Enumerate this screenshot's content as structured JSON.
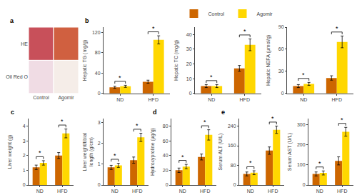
{
  "chart_data": [
    {
      "type": "image",
      "title": "a",
      "categories": [
        "Control",
        "Agomir"
      ],
      "series": [
        {
          "name": "HE",
          "colors": [
            "#c8505a",
            "#d06040"
          ]
        },
        {
          "name": "Oil Red O",
          "colors": [
            "#f0dce4",
            "#f5ede8"
          ]
        }
      ]
    },
    {
      "type": "bar",
      "title": "b",
      "categories": [
        "ND",
        "HFD"
      ],
      "ylabel": "Hepatic TG (mg/g)",
      "ylim": [
        0,
        130
      ],
      "yticks": [
        0,
        40,
        80,
        120
      ],
      "grid": false,
      "series": [
        {
          "name": "Control",
          "color": "#CD6600",
          "values": [
            12,
            23
          ],
          "errors": [
            2,
            3
          ]
        },
        {
          "name": "Agomir",
          "color": "#FFD700",
          "values": [
            14,
            105
          ],
          "errors": [
            2,
            8
          ]
        }
      ],
      "annotations": [
        {
          "x": "ND",
          "text": "*"
        },
        {
          "x": "HFD",
          "text": "*"
        }
      ]
    },
    {
      "type": "bar",
      "categories": [
        "ND",
        "HFD"
      ],
      "ylabel": "Hepatic TC (mg/g)",
      "ylim": [
        0,
        45
      ],
      "yticks": [
        0,
        10,
        20,
        30,
        40
      ],
      "grid": false,
      "legend": "top",
      "series": [
        {
          "name": "Control",
          "color": "#CD6600",
          "values": [
            5,
            17
          ],
          "errors": [
            1,
            2
          ]
        },
        {
          "name": "Agomir",
          "color": "#FFD700",
          "values": [
            5,
            33
          ],
          "errors": [
            1,
            4
          ]
        }
      ],
      "annotations": [
        {
          "x": "ND",
          "text": "*"
        },
        {
          "x": "HFD",
          "text": "*"
        }
      ]
    },
    {
      "type": "bar",
      "categories": [
        "ND",
        "HFD"
      ],
      "ylabel": "Hepatic NEFA (μmol/g)",
      "ylim": [
        0,
        90
      ],
      "yticks": [
        0,
        30,
        60,
        90
      ],
      "grid": false,
      "series": [
        {
          "name": "Control",
          "color": "#CD6600",
          "values": [
            10,
            21
          ],
          "errors": [
            2,
            3
          ]
        },
        {
          "name": "Agomir",
          "color": "#FFD700",
          "values": [
            13,
            70
          ],
          "errors": [
            2,
            8
          ]
        }
      ],
      "annotations": [
        {
          "x": "ND",
          "text": "*"
        },
        {
          "x": "HFD",
          "text": "*"
        }
      ]
    },
    {
      "type": "bar",
      "title": "c",
      "categories": [
        "ND",
        "HFD"
      ],
      "ylabel": "Liver weight (g)",
      "ylim": [
        0,
        4.5
      ],
      "yticks": [
        0,
        1,
        2,
        3,
        4
      ],
      "grid": false,
      "series": [
        {
          "name": "Control",
          "color": "#CD6600",
          "values": [
            1.2,
            2.0
          ],
          "errors": [
            0.15,
            0.2
          ]
        },
        {
          "name": "Agomir",
          "color": "#FFD700",
          "values": [
            1.5,
            3.5
          ],
          "errors": [
            0.15,
            0.3
          ]
        }
      ],
      "annotations": [
        {
          "x": "ND",
          "text": "*"
        },
        {
          "x": "HFD",
          "text": "*"
        }
      ]
    },
    {
      "type": "bar",
      "categories": [
        "ND",
        "HFD"
      ],
      "ylabel": "Liver weight/tibial\nlength (g/cm)",
      "ylim": [
        0,
        3.2
      ],
      "yticks": [
        0,
        1,
        2,
        3
      ],
      "grid": false,
      "series": [
        {
          "name": "Control",
          "color": "#CD6600",
          "values": [
            0.85,
            1.2
          ],
          "errors": [
            0.1,
            0.15
          ]
        },
        {
          "name": "Agomir",
          "color": "#FFD700",
          "values": [
            0.95,
            2.3
          ],
          "errors": [
            0.1,
            0.2
          ]
        }
      ],
      "annotations": [
        {
          "x": "ND",
          "text": "*"
        },
        {
          "x": "HFD",
          "text": "*"
        }
      ]
    },
    {
      "type": "bar",
      "title": "d",
      "categories": [
        "ND",
        "HFD"
      ],
      "ylabel": "Hydroxyproline (μg/g)",
      "ylim": [
        0,
        90
      ],
      "yticks": [
        0,
        20,
        40,
        60,
        80
      ],
      "grid": false,
      "series": [
        {
          "name": "Control",
          "color": "#CD6600",
          "values": [
            20,
            38
          ],
          "errors": [
            3,
            4
          ]
        },
        {
          "name": "Agomir",
          "color": "#FFD700",
          "values": [
            25,
            68
          ],
          "errors": [
            3,
            7
          ]
        }
      ],
      "annotations": [
        {
          "x": "ND",
          "text": "*"
        },
        {
          "x": "HFD",
          "text": "*"
        }
      ]
    },
    {
      "type": "bar",
      "title": "e",
      "categories": [
        "ND",
        "HFD"
      ],
      "ylabel": "Serum ALT (U/L)",
      "ylim": [
        0,
        270
      ],
      "yticks": [
        0,
        80,
        160,
        240
      ],
      "grid": false,
      "series": [
        {
          "name": "Control",
          "color": "#CD6600",
          "values": [
            45,
            140
          ],
          "errors": [
            8,
            15
          ]
        },
        {
          "name": "Agomir",
          "color": "#FFD700",
          "values": [
            50,
            225
          ],
          "errors": [
            8,
            15
          ]
        }
      ],
      "annotations": [
        {
          "x": "ND",
          "text": "*"
        },
        {
          "x": "HFD",
          "text": "*"
        }
      ]
    },
    {
      "type": "bar",
      "categories": [
        "ND",
        "HFD"
      ],
      "ylabel": "Serum AST (U/L)",
      "ylim": [
        0,
        330
      ],
      "yticks": [
        0,
        100,
        200,
        300
      ],
      "grid": false,
      "series": [
        {
          "name": "Control",
          "color": "#CD6600",
          "values": [
            55,
            120
          ],
          "errors": [
            10,
            20
          ]
        },
        {
          "name": "Agomir",
          "color": "#FFD700",
          "values": [
            60,
            265
          ],
          "errors": [
            10,
            22
          ]
        }
      ],
      "annotations": [
        {
          "x": "ND",
          "text": "*"
        },
        {
          "x": "HFD",
          "text": "*"
        }
      ]
    }
  ]
}
